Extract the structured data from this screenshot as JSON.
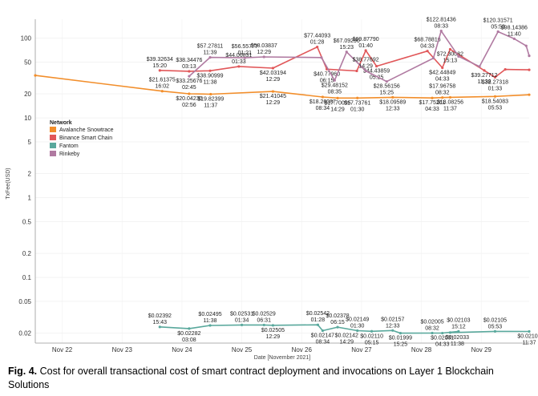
{
  "chart_data": {
    "type": "line",
    "xlabel": "Date [November 2021]",
    "ylabel": "TxFee(USD)",
    "y_scale": "log",
    "ylim": [
      0.015,
      150
    ],
    "xlim": [
      21.55,
      29.8
    ],
    "y_ticks": [
      {
        "value": 100,
        "label": "100"
      },
      {
        "value": 50,
        "label": "50"
      },
      {
        "value": 20,
        "label": "20"
      },
      {
        "value": 10,
        "label": "10"
      },
      {
        "value": 5,
        "label": "5"
      },
      {
        "value": 2,
        "label": "2"
      },
      {
        "value": 1,
        "label": "1"
      },
      {
        "value": 0.5,
        "label": "0.5"
      },
      {
        "value": 0.2,
        "label": "0.2"
      },
      {
        "value": 0.1,
        "label": "0.1"
      },
      {
        "value": 0.05,
        "label": "0.05"
      },
      {
        "value": 0.02,
        "label": "0.02"
      }
    ],
    "x_ticks": [
      {
        "value": 22,
        "label": "Nov 22"
      },
      {
        "value": 23,
        "label": "Nov 23"
      },
      {
        "value": 24,
        "label": "Nov 24"
      },
      {
        "value": 25,
        "label": "Nov 25"
      },
      {
        "value": 26,
        "label": "Nov 26"
      },
      {
        "value": 27,
        "label": "Nov 27"
      },
      {
        "value": 28,
        "label": "Nov 28"
      },
      {
        "value": 29,
        "label": "Nov 29"
      }
    ],
    "legend": {
      "title": "Network",
      "placement": "left"
    },
    "series": [
      {
        "name": "Avalanche Snowtrace",
        "color": "#f28e2b",
        "points": [
          {
            "x": 21.55,
            "y": 34
          },
          {
            "x": 23.67,
            "y": 21.61
          },
          {
            "x": 24.12,
            "y": 20.04
          },
          {
            "x": 24.48,
            "y": 19.82
          },
          {
            "x": 25.52,
            "y": 21.41
          },
          {
            "x": 26.35,
            "y": 18.26
          },
          {
            "x": 26.6,
            "y": 17.7
          },
          {
            "x": 26.93,
            "y": 17.74
          },
          {
            "x": 27.52,
            "y": 18.1
          },
          {
            "x": 28.18,
            "y": 17.75
          },
          {
            "x": 28.35,
            "y": 17.97
          },
          {
            "x": 28.48,
            "y": 18.08
          },
          {
            "x": 29.23,
            "y": 18.54
          },
          {
            "x": 29.8,
            "y": 19.5
          }
        ],
        "labels": [
          {
            "x": 23.67,
            "y": 21.61,
            "lines": [
              "$21.61375",
              "16:02"
            ],
            "pos": "above"
          },
          {
            "x": 24.12,
            "y": 20.04,
            "lines": [
              "$20.04230",
              "02:56"
            ],
            "pos": "below"
          },
          {
            "x": 24.48,
            "y": 19.82,
            "lines": [
              "$19.82399",
              "11:37"
            ],
            "pos": "below"
          },
          {
            "x": 25.52,
            "y": 21.41,
            "lines": [
              "$21.41045",
              "12:29"
            ],
            "pos": "below"
          },
          {
            "x": 26.35,
            "y": 18.26,
            "lines": [
              "$18.26087",
              "08:34"
            ],
            "pos": "below"
          },
          {
            "x": 26.6,
            "y": 17.7,
            "lines": [
              "$17.70095",
              "14:29"
            ],
            "pos": "below"
          },
          {
            "x": 26.93,
            "y": 17.74,
            "lines": [
              "$17.73761",
              "01:30"
            ],
            "pos": "below"
          },
          {
            "x": 27.52,
            "y": 18.1,
            "lines": [
              "$18.09589",
              "12:33"
            ],
            "pos": "below"
          },
          {
            "x": 28.18,
            "y": 17.75,
            "lines": [
              "$17.75261",
              "04:33"
            ],
            "pos": "below"
          },
          {
            "x": 28.35,
            "y": 17.97,
            "lines": [
              "$17.96758",
              "08:32"
            ],
            "pos": "above"
          },
          {
            "x": 28.48,
            "y": 18.08,
            "lines": [
              "$18.08256",
              "11:37"
            ],
            "pos": "below"
          },
          {
            "x": 29.23,
            "y": 18.54,
            "lines": [
              "$18.54083",
              "05:53"
            ],
            "pos": "below"
          }
        ]
      },
      {
        "name": "Binance Smart Chain",
        "color": "#e15759",
        "points": [
          {
            "x": 23.63,
            "y": 39.33
          },
          {
            "x": 24.12,
            "y": 38.34
          },
          {
            "x": 24.47,
            "y": 38.91
          },
          {
            "x": 24.95,
            "y": 44.07
          },
          {
            "x": 25.52,
            "y": 42.03
          },
          {
            "x": 26.26,
            "y": 77.44
          },
          {
            "x": 26.42,
            "y": 40.78
          },
          {
            "x": 26.92,
            "y": 38.78
          },
          {
            "x": 27.07,
            "y": 69.88
          },
          {
            "x": 27.25,
            "y": 44.44
          },
          {
            "x": 28.1,
            "y": 68.79
          },
          {
            "x": 28.35,
            "y": 42.45
          },
          {
            "x": 28.48,
            "y": 72.3
          },
          {
            "x": 29.05,
            "y": 39.28
          },
          {
            "x": 29.23,
            "y": 32.27
          },
          {
            "x": 29.4,
            "y": 40.5
          },
          {
            "x": 29.8,
            "y": 40.0
          }
        ],
        "labels": [
          {
            "x": 23.63,
            "y": 39.33,
            "lines": [
              "$39.32634",
              "15:20"
            ],
            "pos": "above"
          },
          {
            "x": 24.12,
            "y": 38.34,
            "lines": [
              "$38.34476",
              "03:13"
            ],
            "pos": "above"
          },
          {
            "x": 24.47,
            "y": 38.91,
            "lines": [
              "$38.90999",
              "11:38"
            ],
            "pos": "below"
          },
          {
            "x": 24.95,
            "y": 44.07,
            "lines": [
              "$44.06831",
              "01:33"
            ],
            "pos": "above"
          },
          {
            "x": 25.52,
            "y": 42.03,
            "lines": [
              "$42.03194",
              "12:29"
            ],
            "pos": "below"
          },
          {
            "x": 26.26,
            "y": 77.44,
            "lines": [
              "$77.44093",
              "01:28"
            ],
            "pos": "above"
          },
          {
            "x": 26.42,
            "y": 40.78,
            "lines": [
              "$40.77960",
              "06:15"
            ],
            "pos": "below"
          },
          {
            "x": 27.07,
            "y": 69.88,
            "lines": [
              "$69.87790",
              "01:40"
            ],
            "pos": "above"
          },
          {
            "x": 27.25,
            "y": 44.44,
            "lines": [
              "$44.43859",
              "05:25"
            ],
            "pos": "below"
          },
          {
            "x": 28.1,
            "y": 68.79,
            "lines": [
              "$68.78816",
              "04:33"
            ],
            "pos": "above"
          },
          {
            "x": 28.35,
            "y": 42.45,
            "lines": [
              "$42.44849",
              "04:33"
            ],
            "pos": "below"
          },
          {
            "x": 28.48,
            "y": 72.3,
            "lines": [
              "$72.30082",
              "15:13"
            ],
            "pos": "below"
          },
          {
            "x": 29.05,
            "y": 39.28,
            "lines": [
              "$39.27712",
              "11:38"
            ],
            "pos": "below"
          },
          {
            "x": 29.23,
            "y": 32.27,
            "lines": [
              "$32.27318",
              "01:33"
            ],
            "pos": "below"
          }
        ]
      },
      {
        "name": "Fantom",
        "color": "#59a89c",
        "points": [
          {
            "x": 23.63,
            "y": 0.02392
          },
          {
            "x": 24.12,
            "y": 0.02282
          },
          {
            "x": 24.47,
            "y": 0.02495
          },
          {
            "x": 25.0,
            "y": 0.02531
          },
          {
            "x": 25.37,
            "y": 0.02529
          },
          {
            "x": 25.52,
            "y": 0.02505
          },
          {
            "x": 26.27,
            "y": 0.02542
          },
          {
            "x": 26.35,
            "y": 0.02147
          },
          {
            "x": 26.6,
            "y": 0.02378
          },
          {
            "x": 26.93,
            "y": 0.02149
          },
          {
            "x": 27.17,
            "y": 0.0211
          },
          {
            "x": 27.52,
            "y": 0.02157
          },
          {
            "x": 27.65,
            "y": 0.01999
          },
          {
            "x": 28.18,
            "y": 0.02005
          },
          {
            "x": 28.35,
            "y": 0.02001
          },
          {
            "x": 28.62,
            "y": 0.02103
          },
          {
            "x": 28.48,
            "y": 0.02033
          },
          {
            "x": 29.23,
            "y": 0.02105
          },
          {
            "x": 29.8,
            "y": 0.021
          }
        ],
        "labels": [
          {
            "x": 23.63,
            "y": 0.02392,
            "lines": [
              "$0.02392",
              "15:43"
            ],
            "pos": "above"
          },
          {
            "x": 24.12,
            "y": 0.02282,
            "lines": [
              "$0.02282",
              "03:08"
            ],
            "pos": "below"
          },
          {
            "x": 24.47,
            "y": 0.02495,
            "lines": [
              "$0.02495",
              "11:38"
            ],
            "pos": "above"
          },
          {
            "x": 25.0,
            "y": 0.02531,
            "lines": [
              "$0.02531",
              "01:34"
            ],
            "pos": "above"
          },
          {
            "x": 25.37,
            "y": 0.02529,
            "lines": [
              "$0.02529",
              "06:31"
            ],
            "pos": "above"
          },
          {
            "x": 25.52,
            "y": 0.02505,
            "lines": [
              "$0.02505",
              "12:29"
            ],
            "pos": "below"
          },
          {
            "x": 26.27,
            "y": 0.02542,
            "lines": [
              "$0.02542",
              "01:28"
            ],
            "pos": "above"
          },
          {
            "x": 26.35,
            "y": 0.02147,
            "lines": [
              "$0.02147",
              "08:34"
            ],
            "pos": "below"
          },
          {
            "x": 26.6,
            "y": 0.02378,
            "lines": [
              "$0.02378",
              "06:15"
            ],
            "pos": "above"
          },
          {
            "x": 26.93,
            "y": 0.02149,
            "lines": [
              "$0.02149",
              "01:30"
            ],
            "pos": "above"
          },
          {
            "x": 26.75,
            "y": 0.02142,
            "lines": [
              "$0.02142",
              "14:29"
            ],
            "pos": "below"
          },
          {
            "x": 27.17,
            "y": 0.0211,
            "lines": [
              "$0.02110",
              "05:15"
            ],
            "pos": "below"
          },
          {
            "x": 27.52,
            "y": 0.02157,
            "lines": [
              "$0.02157",
              "12:33"
            ],
            "pos": "above"
          },
          {
            "x": 27.65,
            "y": 0.01999,
            "lines": [
              "$0.01999",
              "15:25"
            ],
            "pos": "below"
          },
          {
            "x": 28.18,
            "y": 0.02005,
            "lines": [
              "$0.02005",
              "08:32"
            ],
            "pos": "above"
          },
          {
            "x": 28.35,
            "y": 0.02001,
            "lines": [
              "$0.02001",
              "04:33"
            ],
            "pos": "below"
          },
          {
            "x": 28.62,
            "y": 0.02103,
            "lines": [
              "$0.02103",
              "15:12"
            ],
            "pos": "above"
          },
          {
            "x": 28.6,
            "y": 0.02033,
            "lines": [
              "$0.02033",
              "11:38"
            ],
            "pos": "below"
          },
          {
            "x": 29.23,
            "y": 0.02105,
            "lines": [
              "$0.02105",
              "05:53"
            ],
            "pos": "above"
          },
          {
            "x": 29.8,
            "y": 0.021,
            "lines": [
              "$0.02100",
              "11:37"
            ],
            "pos": "below"
          }
        ]
      },
      {
        "name": "Rinkeby",
        "color": "#b07aa1",
        "points": [
          {
            "x": 24.12,
            "y": 33.26
          },
          {
            "x": 24.47,
            "y": 57.28
          },
          {
            "x": 25.05,
            "y": 56.56
          },
          {
            "x": 25.37,
            "y": 58.04
          },
          {
            "x": 26.33,
            "y": 57.0
          },
          {
            "x": 26.55,
            "y": 29.48
          },
          {
            "x": 26.75,
            "y": 67.09
          },
          {
            "x": 27.07,
            "y": 38.78
          },
          {
            "x": 27.42,
            "y": 28.56
          },
          {
            "x": 28.2,
            "y": 56.0
          },
          {
            "x": 28.33,
            "y": 122.81
          },
          {
            "x": 28.62,
            "y": 59.0
          },
          {
            "x": 28.97,
            "y": 44.0
          },
          {
            "x": 29.28,
            "y": 120.32
          },
          {
            "x": 29.55,
            "y": 98.14
          },
          {
            "x": 29.75,
            "y": 80.0
          },
          {
            "x": 29.8,
            "y": 60.0
          }
        ],
        "labels": [
          {
            "x": 24.12,
            "y": 33.26,
            "lines": [
              "$33.25676",
              "02:45"
            ],
            "pos": "below"
          },
          {
            "x": 24.47,
            "y": 57.28,
            "lines": [
              "$57.27811",
              "11:39"
            ],
            "pos": "above"
          },
          {
            "x": 25.05,
            "y": 56.56,
            "lines": [
              "$56.55777",
              "01:21"
            ],
            "pos": "above"
          },
          {
            "x": 25.37,
            "y": 58.04,
            "lines": [
              "$58.03837",
              "12:29"
            ],
            "pos": "above"
          },
          {
            "x": 26.55,
            "y": 29.48,
            "lines": [
              "$29.48152",
              "08:35"
            ],
            "pos": "below"
          },
          {
            "x": 26.75,
            "y": 67.09,
            "lines": [
              "$67.09290",
              "15:23"
            ],
            "pos": "above"
          },
          {
            "x": 27.07,
            "y": 38.78,
            "lines": [
              "$38.77692",
              "14:29"
            ],
            "pos": "above"
          },
          {
            "x": 27.42,
            "y": 28.56,
            "lines": [
              "$28.56156",
              "15:25"
            ],
            "pos": "below"
          },
          {
            "x": 28.33,
            "y": 122.81,
            "lines": [
              "$122.81436",
              "08:33"
            ],
            "pos": "above"
          },
          {
            "x": 29.28,
            "y": 120.32,
            "lines": [
              "$120.31571",
              "05:53"
            ],
            "pos": "above"
          },
          {
            "x": 29.55,
            "y": 98.14,
            "lines": [
              "$98.14386",
              "11:40"
            ],
            "pos": "above"
          }
        ]
      }
    ]
  },
  "caption": {
    "label": "Fig. 4.",
    "text": "Cost for overall transactional cost of smart contract deployment and invocations on Layer 1 Blockchain Solutions"
  }
}
